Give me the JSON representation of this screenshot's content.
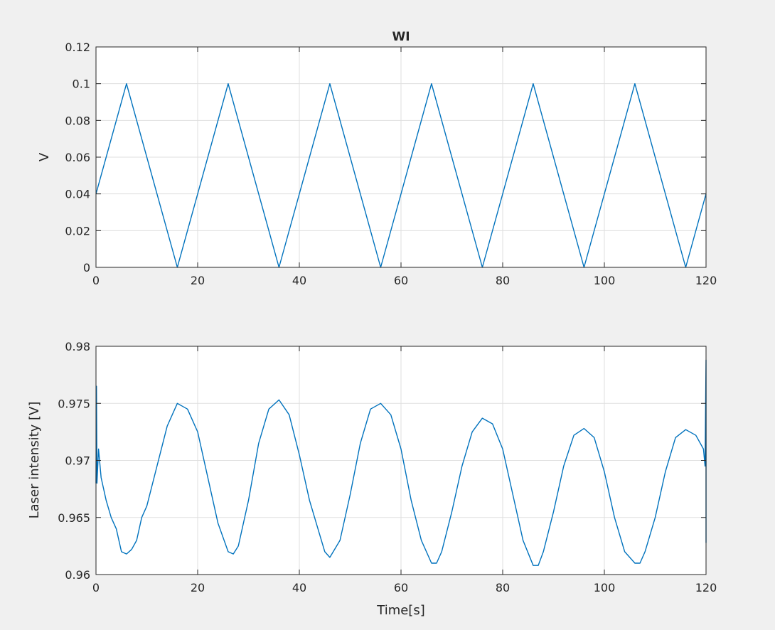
{
  "window": {
    "background": "#f0f0f0"
  },
  "chart_data": [
    {
      "type": "line",
      "title": "WI",
      "xlabel": "",
      "ylabel": "V",
      "xlim": [
        0,
        120
      ],
      "ylim": [
        0,
        0.12
      ],
      "xticks": [
        0,
        20,
        40,
        60,
        80,
        100,
        120
      ],
      "xtick_labels": [
        "0",
        "20",
        "40",
        "60",
        "80",
        "100",
        "120"
      ],
      "yticks": [
        0,
        0.02,
        0.04,
        0.06,
        0.08,
        0.1,
        0.12
      ],
      "ytick_labels": [
        "0",
        "0.02",
        "0.04",
        "0.06",
        "0.08",
        "0.1",
        "0.12"
      ],
      "grid": true,
      "line_color": "#0072bd",
      "series": [
        {
          "x": [
            0,
            6,
            16,
            26,
            36,
            46,
            56,
            66,
            76,
            86,
            96,
            106,
            116,
            120
          ],
          "y": [
            0.04,
            0.1,
            0,
            0.1,
            0,
            0.1,
            0,
            0.1,
            0,
            0.1,
            0,
            0.1,
            0,
            0.04
          ]
        }
      ]
    },
    {
      "type": "line",
      "title": "",
      "xlabel": "Time[s]",
      "ylabel": "Laser intensity [V]",
      "xlim": [
        0,
        120
      ],
      "ylim": [
        0.96,
        0.98
      ],
      "xticks": [
        0,
        20,
        40,
        60,
        80,
        100,
        120
      ],
      "xtick_labels": [
        "0",
        "20",
        "40",
        "60",
        "80",
        "100",
        "120"
      ],
      "yticks": [
        0.96,
        0.965,
        0.97,
        0.975,
        0.98
      ],
      "ytick_labels": [
        "0.96",
        "0.965",
        "0.97",
        "0.975",
        "0.98"
      ],
      "grid": true,
      "line_color": "#0072bd",
      "series": [
        {
          "x": [
            0,
            0.1,
            0.2,
            0.5,
            1,
            2,
            3,
            4,
            5,
            6,
            7,
            8,
            9,
            10,
            12,
            14,
            16,
            18,
            20,
            22,
            24,
            26,
            27,
            28,
            30,
            32,
            34,
            36,
            38,
            40,
            42,
            44,
            45,
            46,
            48,
            50,
            52,
            54,
            56,
            58,
            60,
            62,
            64,
            66,
            67,
            68,
            70,
            72,
            74,
            76,
            78,
            80,
            82,
            84,
            86,
            87,
            88,
            90,
            92,
            94,
            96,
            98,
            100,
            102,
            104,
            106,
            107,
            108,
            110,
            112,
            114,
            116,
            118,
            119.5,
            119.8,
            120,
            120,
            120
          ],
          "y": [
            0.968,
            0.9765,
            0.968,
            0.971,
            0.9685,
            0.9665,
            0.965,
            0.964,
            0.962,
            0.9618,
            0.9622,
            0.963,
            0.965,
            0.966,
            0.9695,
            0.973,
            0.975,
            0.9745,
            0.9725,
            0.9685,
            0.9645,
            0.962,
            0.9618,
            0.9625,
            0.9665,
            0.9715,
            0.9745,
            0.9753,
            0.974,
            0.9705,
            0.9665,
            0.9635,
            0.962,
            0.9615,
            0.963,
            0.967,
            0.9715,
            0.9745,
            0.975,
            0.974,
            0.971,
            0.9665,
            0.963,
            0.961,
            0.961,
            0.962,
            0.9655,
            0.9695,
            0.9725,
            0.9737,
            0.9732,
            0.971,
            0.967,
            0.963,
            0.9608,
            0.9608,
            0.962,
            0.9655,
            0.9695,
            0.9722,
            0.9728,
            0.972,
            0.969,
            0.965,
            0.962,
            0.961,
            0.961,
            0.962,
            0.965,
            0.969,
            0.972,
            0.9727,
            0.9722,
            0.971,
            0.9695,
            0.9788,
            0.9628,
            0.97
          ]
        }
      ]
    }
  ]
}
